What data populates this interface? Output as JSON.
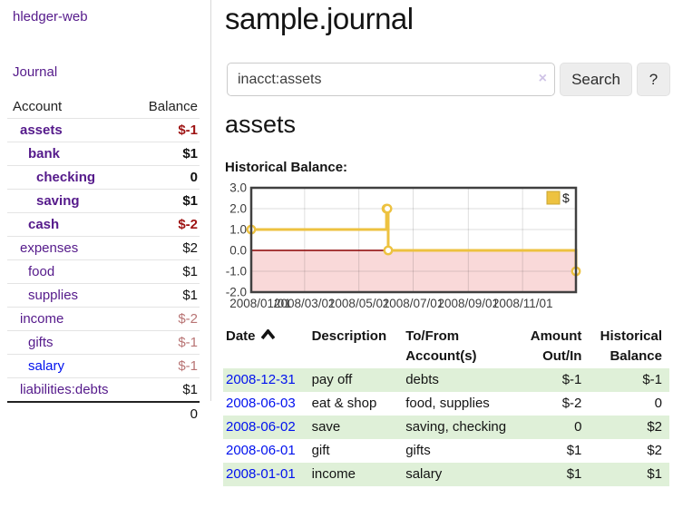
{
  "app": {
    "brand": "hledger-web",
    "nav_journal": "Journal"
  },
  "sidebar": {
    "headers": {
      "account": "Account",
      "balance": "Balance"
    },
    "accounts": [
      {
        "name": "assets",
        "balance": "$-1",
        "indent": 1,
        "bold": true,
        "balance_style": "negd",
        "link_color": "purple"
      },
      {
        "name": "bank",
        "balance": "$1",
        "indent": 2,
        "bold": true,
        "balance_style": "",
        "link_color": "purple"
      },
      {
        "name": "checking",
        "balance": "0",
        "indent": 3,
        "bold": true,
        "balance_style": "",
        "link_color": "purple"
      },
      {
        "name": "saving",
        "balance": "$1",
        "indent": 3,
        "bold": true,
        "balance_style": "",
        "link_color": "purple"
      },
      {
        "name": "cash",
        "balance": "$-2",
        "indent": 2,
        "bold": true,
        "balance_style": "negd",
        "link_color": "purple"
      },
      {
        "name": "expenses",
        "balance": "$2",
        "indent": 1,
        "bold": false,
        "balance_style": "",
        "link_color": "purple"
      },
      {
        "name": "food",
        "balance": "$1",
        "indent": 2,
        "bold": false,
        "balance_style": "",
        "link_color": "purple"
      },
      {
        "name": "supplies",
        "balance": "$1",
        "indent": 2,
        "bold": false,
        "balance_style": "",
        "link_color": "purple"
      },
      {
        "name": "income",
        "balance": "$-2",
        "indent": 1,
        "bold": false,
        "balance_style": "negm",
        "link_color": "purple"
      },
      {
        "name": "gifts",
        "balance": "$-1",
        "indent": 2,
        "bold": false,
        "balance_style": "negm",
        "link_color": "purple"
      },
      {
        "name": "salary",
        "balance": "$-1",
        "indent": 2,
        "bold": false,
        "balance_style": "negm",
        "link_color": "blue"
      },
      {
        "name": "liabilities:debts",
        "balance": "$1",
        "indent": 1,
        "bold": false,
        "balance_style": "",
        "link_color": "purple"
      }
    ],
    "total": "0"
  },
  "header": {
    "title": "sample.journal"
  },
  "search": {
    "value": "inacct:assets",
    "clear_icon_label": "×",
    "search_button": "Search",
    "help_button": "?"
  },
  "account_page": {
    "title": "assets",
    "chart_label": "Historical Balance:"
  },
  "chart_data": {
    "type": "line",
    "step": true,
    "title": "Historical Balance:",
    "series": [
      {
        "name": "$",
        "color": "#edc240",
        "points": [
          {
            "date": "2008-01-01",
            "value": 1
          },
          {
            "date": "2008-06-01",
            "value": 2
          },
          {
            "date": "2008-06-02",
            "value": 2
          },
          {
            "date": "2008-06-03",
            "value": 0
          },
          {
            "date": "2008-12-31",
            "value": -1
          }
        ]
      }
    ],
    "xlim": [
      "2008-01-01",
      "2008-12-31"
    ],
    "ylim": [
      -2,
      3
    ],
    "y_ticks": [
      "3.0",
      "2.0",
      "1.0",
      "0.0",
      "-1.0",
      "-2.0"
    ],
    "x_ticks": [
      "2008/01/01",
      "2008/03/01",
      "2008/05/01",
      "2008/07/01",
      "2008/09/01",
      "2008/11/01"
    ],
    "grid": true,
    "legend": {
      "label": "$",
      "position": "top-right",
      "swatch_color": "#edc240"
    },
    "negative_region_color": "#f9d9d9",
    "zero_line_color": "#8b0000",
    "border_color": "#404040"
  },
  "register": {
    "headers": [
      {
        "line1": "Date",
        "line2": "",
        "sorted": true
      },
      {
        "line1": "Description",
        "line2": "",
        "sorted": false
      },
      {
        "line1": "To/From",
        "line2": "Account(s)",
        "sorted": false
      },
      {
        "line1": "Amount",
        "line2": "Out/In",
        "sorted": false
      },
      {
        "line1": "Historical",
        "line2": "Balance",
        "sorted": false
      }
    ],
    "rows": [
      {
        "date": "2008-12-31",
        "description": "pay off",
        "accounts": "debts",
        "amount": "$-1",
        "amount_neg": true,
        "balance": "$-1",
        "balance_neg": true
      },
      {
        "date": "2008-06-03",
        "description": "eat & shop",
        "accounts": "food, supplies",
        "amount": "$-2",
        "amount_neg": true,
        "balance": "0",
        "balance_neg": false
      },
      {
        "date": "2008-06-02",
        "description": "save",
        "accounts": "saving, checking",
        "amount": "0",
        "amount_neg": false,
        "balance": "$2",
        "balance_neg": false
      },
      {
        "date": "2008-06-01",
        "description": "gift",
        "accounts": "gifts",
        "amount": "$1",
        "amount_neg": false,
        "balance": "$2",
        "balance_neg": false
      },
      {
        "date": "2008-01-01",
        "description": "income",
        "accounts": "salary",
        "amount": "$1",
        "amount_neg": false,
        "balance": "$1",
        "balance_neg": false
      }
    ]
  },
  "colors": {
    "link_purple": "#551a8b",
    "link_blue": "#0011ee",
    "negative_dark": "#9e1313",
    "negative_muted": "#b87474",
    "row_stripe_green": "#dff0d8",
    "chart_gold": "#edc240",
    "chart_negative_fill": "#f9d9d9",
    "chart_zero_line": "#8b0000"
  }
}
